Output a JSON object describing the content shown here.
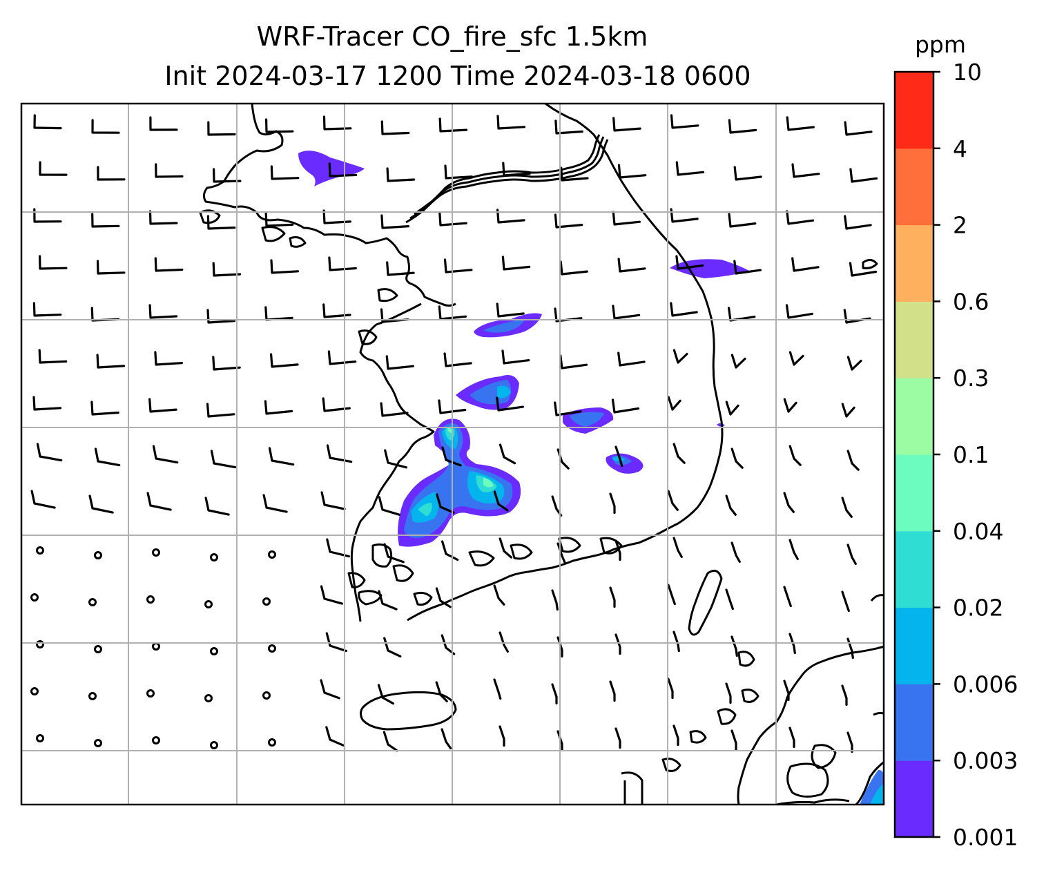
{
  "title_line1": "WRF-Tracer CO_fire_sfc 1.5km",
  "title_line2": "Init 2024-03-17 1200 Time 2024-03-18 0600",
  "colorbar": {
    "unit": "ppm",
    "levels": [
      "0.001",
      "0.003",
      "0.006",
      "0.02",
      "0.04",
      "0.1",
      "0.3",
      "0.6",
      "2",
      "4",
      "10"
    ],
    "colors": [
      "#6a2bff",
      "#3874f0",
      "#04b4ec",
      "#30ddd3",
      "#6cfcbf",
      "#9cfca4",
      "#d2e08a",
      "#ffb05f",
      "#ff6f3b",
      "#ff2a17"
    ]
  },
  "map": {
    "grid": "on",
    "features": [
      "coastlines",
      "border",
      "wind-barbs",
      "tracer-contours"
    ],
    "fire_plumes": 9
  }
}
